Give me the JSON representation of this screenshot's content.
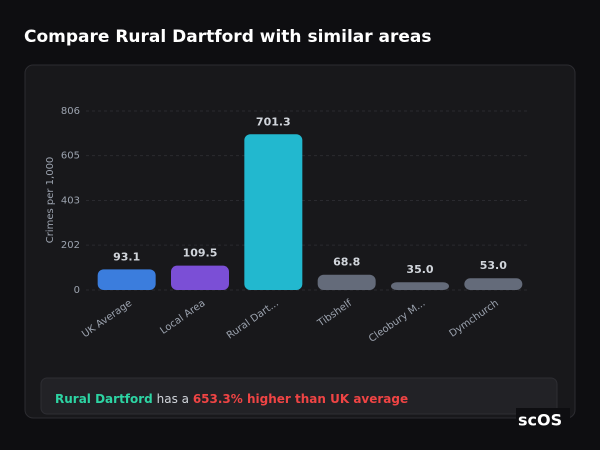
{
  "page": {
    "title": "Compare Rural Dartford with similar areas",
    "summary": {
      "area": "Rural Dartford",
      "text": "has a",
      "delta": "653.3% higher than UK average"
    },
    "logo": "scOS"
  },
  "chart_data": {
    "type": "bar",
    "y_label": "Crimes per 1,000",
    "categories": [
      "UK Average",
      "Local Area",
      "Rural Dart...",
      "Tibshelf",
      "Cleobury M...",
      "Dymchurch"
    ],
    "values": [
      93.1,
      109.5,
      701.3,
      68.8,
      35.0,
      53.0
    ],
    "value_labels": [
      "93.1",
      "109.5",
      "701.3",
      "68.8",
      "35.0",
      "53.0"
    ],
    "colors": [
      "#3b7ddd",
      "#7b4fd6",
      "#22b8cf",
      "#646b7a",
      "#646b7a",
      "#646b7a"
    ],
    "ylim": [
      0,
      806
    ],
    "yticks": [
      0,
      202,
      403,
      605,
      806
    ],
    "grid": true
  }
}
